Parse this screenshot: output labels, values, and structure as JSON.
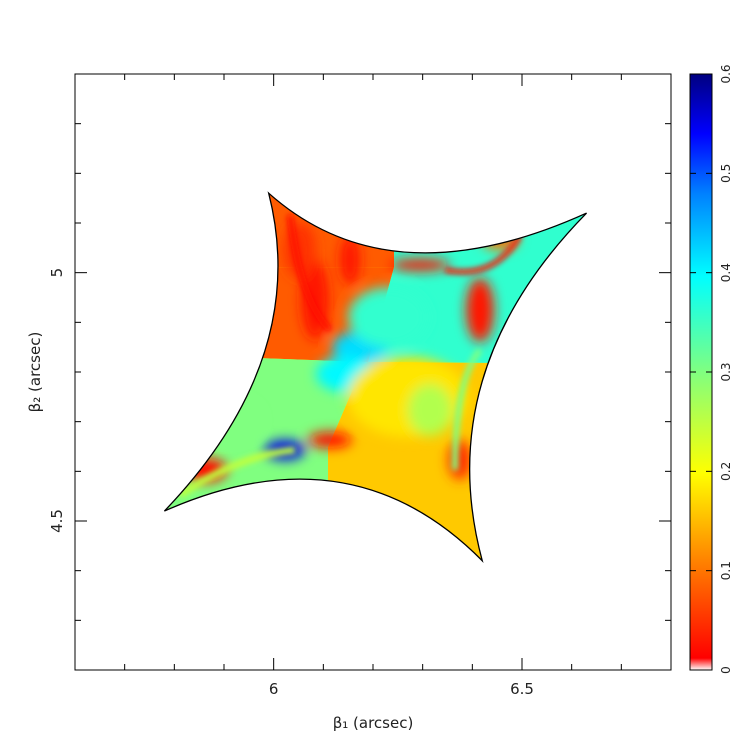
{
  "chart_data": {
    "type": "heatmap",
    "xlabel": "β₁ (arcsec)",
    "ylabel": "β₂ (arcsec)",
    "xlim": [
      5.6,
      6.8
    ],
    "ylim": [
      4.2,
      5.4
    ],
    "x_ticks": [
      "6",
      "6.5"
    ],
    "y_ticks": [
      "4.5",
      "5"
    ],
    "caustic_cusps": {
      "top": [
        5.99,
        5.16
      ],
      "right": [
        6.63,
        5.12
      ],
      "bottom": [
        6.42,
        4.42
      ],
      "left": [
        5.78,
        4.52
      ]
    },
    "quadrant_center": [
      6.19,
      4.82
    ],
    "colorbar": {
      "range": [
        0,
        0.6
      ],
      "ticks": [
        "0",
        "0.1",
        "0.2",
        "0.3",
        "0.4",
        "0.5",
        "0.6"
      ],
      "colormap": [
        "#ffffff",
        "#ff0000",
        "#ff8000",
        "#ffff00",
        "#80ff80",
        "#00ffff",
        "#0080ff",
        "#0000ff",
        "#000080"
      ]
    },
    "quadrant_mean_values": {
      "upper_left": 0.08,
      "upper_right": 0.36,
      "lower_left": 0.3,
      "lower_right": 0.16
    }
  }
}
